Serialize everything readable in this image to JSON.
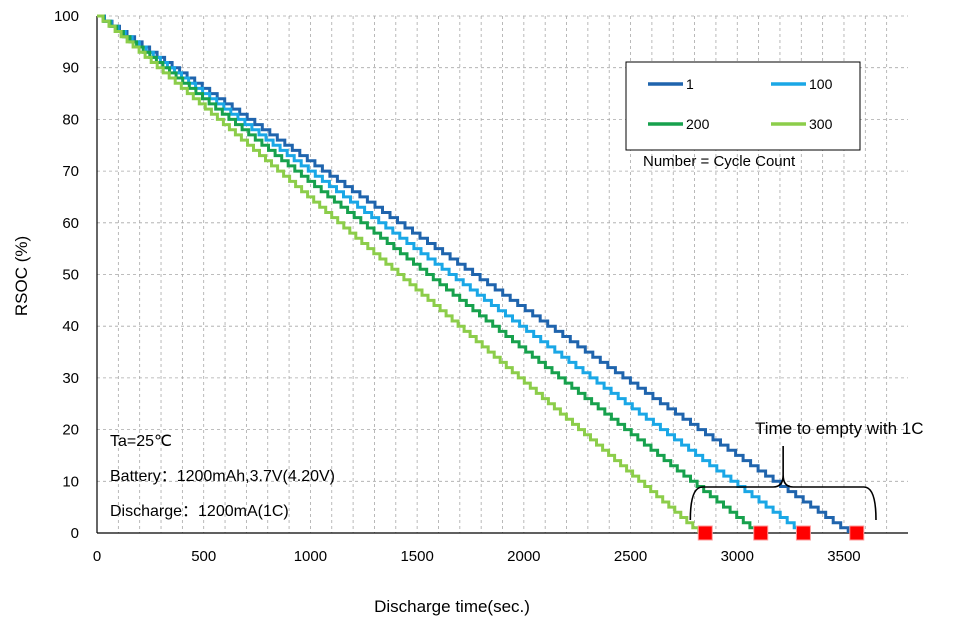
{
  "chart_data": {
    "type": "line",
    "title": "",
    "xlabel": "Discharge time(sec.)",
    "ylabel": "RSOC (%)",
    "xlim": [
      0,
      3800
    ],
    "ylim": [
      0,
      100
    ],
    "x_ticks": [
      "0",
      "500",
      "1000",
      "1500",
      "2000",
      "2500",
      "3000",
      "3500"
    ],
    "y_ticks": [
      "0",
      "10",
      "20",
      "30",
      "40",
      "50",
      "60",
      "70",
      "80",
      "90",
      "100"
    ],
    "grid": true,
    "legend_position": "top-right",
    "legend_note": "Number = Cycle Count",
    "series": [
      {
        "name": "1",
        "color": "#1f64ad",
        "x": [
          0,
          3520
        ],
        "y": [
          100,
          0
        ]
      },
      {
        "name": "100",
        "color": "#1aa7e6",
        "x": [
          0,
          3300
        ],
        "y": [
          100,
          0
        ]
      },
      {
        "name": "200",
        "color": "#17a14d",
        "x": [
          0,
          3090
        ],
        "y": [
          100,
          0
        ]
      },
      {
        "name": "300",
        "color": "#8ccd4a",
        "x": [
          0,
          2820
        ],
        "y": [
          100,
          0
        ]
      }
    ],
    "empty_markers": {
      "color": "#ff0000",
      "x": [
        2850,
        3110,
        3310,
        3560
      ],
      "y": [
        0,
        0,
        0,
        0
      ]
    },
    "annotations": {
      "conditions": [
        "Ta=25℃",
        "Battery：1200mAh,3.7V(4.20V)",
        "Discharge：1200mA(1C)"
      ],
      "callout": "Time to empty with 1C",
      "callout_bracket_x": [
        2780,
        3650
      ]
    }
  }
}
